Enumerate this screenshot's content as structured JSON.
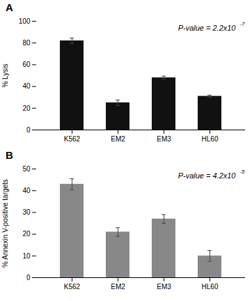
{
  "chart_data": [
    {
      "type": "bar",
      "title": "A",
      "categories": [
        "K562",
        "EM2",
        "EM3",
        "HL60"
      ],
      "values": [
        82,
        25,
        48,
        31
      ],
      "errors": [
        2.5,
        2.5,
        1.5,
        1.0
      ],
      "ylabel": "% Lysis",
      "ylim": [
        0,
        100
      ],
      "yticks": [
        0,
        20,
        40,
        60,
        80,
        100
      ],
      "color": "#111111",
      "annotations": [
        {
          "text": "P-value = 2.2x10",
          "superscript": "-7"
        }
      ]
    },
    {
      "type": "bar",
      "title": "B",
      "categories": [
        "K562",
        "EM2",
        "EM3",
        "HL60"
      ],
      "values": [
        43,
        21,
        27,
        10
      ],
      "errors": [
        2.5,
        2.0,
        2.0,
        2.5
      ],
      "ylabel": "% Annexin V-positive targets",
      "ylim": [
        0,
        50
      ],
      "yticks": [
        0,
        10,
        20,
        30,
        40,
        50
      ],
      "color": "#888888",
      "annotations": [
        {
          "text": "P-value = 4.2x10",
          "superscript": "-5"
        }
      ]
    }
  ]
}
